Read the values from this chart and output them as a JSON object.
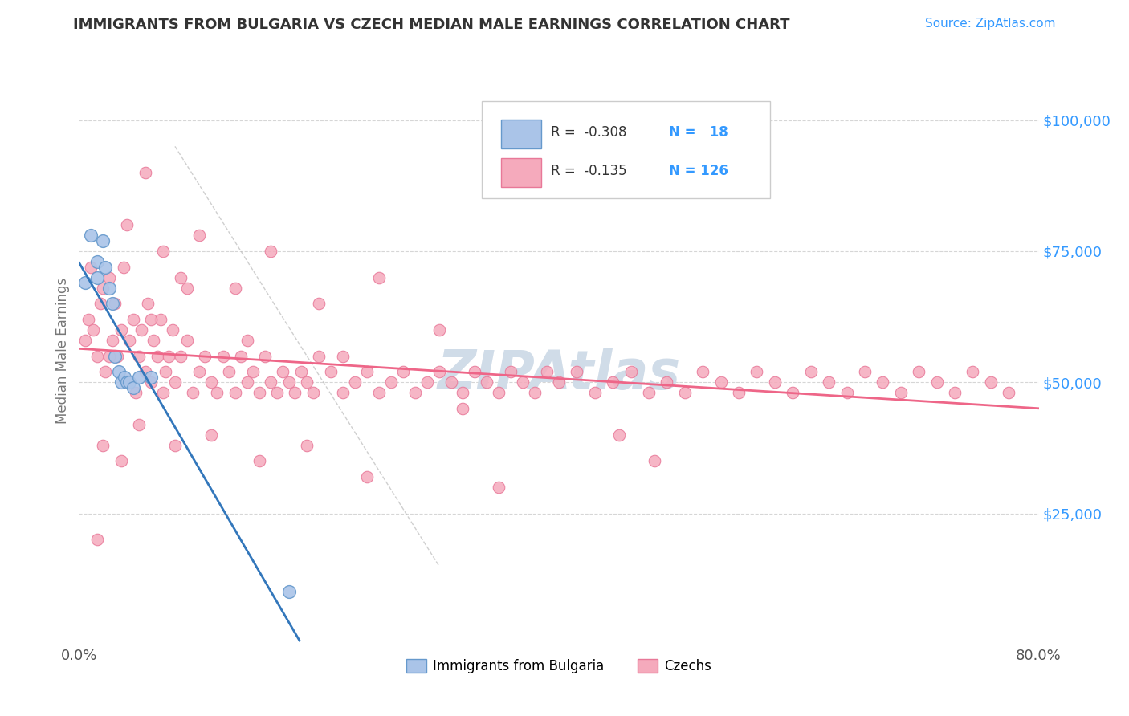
{
  "title": "IMMIGRANTS FROM BULGARIA VS CZECH MEDIAN MALE EARNINGS CORRELATION CHART",
  "source_text": "Source: ZipAtlas.com",
  "ylabel": "Median Male Earnings",
  "xlim": [
    0.0,
    0.8
  ],
  "ylim": [
    0,
    112000
  ],
  "r1": -0.308,
  "n1": 18,
  "r2": -0.135,
  "n2": 126,
  "color_bulgaria": "#aac4e8",
  "color_bulgaria_edge": "#6699cc",
  "color_czech": "#f5aabc",
  "color_czech_edge": "#e87898",
  "color_trendline_bulgaria": "#3377bb",
  "color_trendline_czech": "#ee6688",
  "color_axis_labels": "#3399ff",
  "color_title": "#333333",
  "watermark_text": "ZIPAtlas",
  "watermark_color": "#d0dce8",
  "background_color": "#ffffff",
  "grid_color": "#cccccc",
  "bulgaria_x": [
    0.005,
    0.01,
    0.015,
    0.015,
    0.02,
    0.022,
    0.025,
    0.028,
    0.03,
    0.033,
    0.035,
    0.038,
    0.04,
    0.042,
    0.045,
    0.05,
    0.06,
    0.175
  ],
  "bulgaria_y": [
    69000,
    78000,
    73000,
    70000,
    77000,
    72000,
    68000,
    65000,
    55000,
    52000,
    50000,
    51000,
    50000,
    50000,
    49000,
    51000,
    51000,
    10000
  ],
  "czech_x": [
    0.005,
    0.008,
    0.01,
    0.012,
    0.015,
    0.018,
    0.02,
    0.022,
    0.025,
    0.028,
    0.03,
    0.032,
    0.035,
    0.037,
    0.04,
    0.042,
    0.045,
    0.047,
    0.05,
    0.052,
    0.055,
    0.057,
    0.06,
    0.062,
    0.065,
    0.068,
    0.07,
    0.072,
    0.075,
    0.078,
    0.08,
    0.085,
    0.09,
    0.095,
    0.1,
    0.105,
    0.11,
    0.115,
    0.12,
    0.125,
    0.13,
    0.135,
    0.14,
    0.145,
    0.15,
    0.155,
    0.16,
    0.165,
    0.17,
    0.175,
    0.18,
    0.185,
    0.19,
    0.195,
    0.2,
    0.21,
    0.22,
    0.23,
    0.24,
    0.25,
    0.26,
    0.27,
    0.28,
    0.29,
    0.3,
    0.31,
    0.32,
    0.33,
    0.34,
    0.35,
    0.36,
    0.37,
    0.38,
    0.39,
    0.4,
    0.415,
    0.43,
    0.445,
    0.46,
    0.475,
    0.49,
    0.505,
    0.52,
    0.535,
    0.55,
    0.565,
    0.58,
    0.595,
    0.61,
    0.625,
    0.64,
    0.655,
    0.67,
    0.685,
    0.7,
    0.715,
    0.73,
    0.745,
    0.76,
    0.775,
    0.04,
    0.055,
    0.07,
    0.085,
    0.1,
    0.13,
    0.16,
    0.2,
    0.25,
    0.3,
    0.02,
    0.035,
    0.05,
    0.08,
    0.11,
    0.15,
    0.19,
    0.24,
    0.35,
    0.45,
    0.015,
    0.025,
    0.06,
    0.09,
    0.14,
    0.22,
    0.32,
    0.48
  ],
  "czech_y": [
    58000,
    62000,
    72000,
    60000,
    55000,
    65000,
    68000,
    52000,
    70000,
    58000,
    65000,
    55000,
    60000,
    72000,
    50000,
    58000,
    62000,
    48000,
    55000,
    60000,
    52000,
    65000,
    50000,
    58000,
    55000,
    62000,
    48000,
    52000,
    55000,
    60000,
    50000,
    55000,
    58000,
    48000,
    52000,
    55000,
    50000,
    48000,
    55000,
    52000,
    48000,
    55000,
    50000,
    52000,
    48000,
    55000,
    50000,
    48000,
    52000,
    50000,
    48000,
    52000,
    50000,
    48000,
    55000,
    52000,
    48000,
    50000,
    52000,
    48000,
    50000,
    52000,
    48000,
    50000,
    52000,
    50000,
    48000,
    52000,
    50000,
    48000,
    52000,
    50000,
    48000,
    52000,
    50000,
    52000,
    48000,
    50000,
    52000,
    48000,
    50000,
    48000,
    52000,
    50000,
    48000,
    52000,
    50000,
    48000,
    52000,
    50000,
    48000,
    52000,
    50000,
    48000,
    52000,
    50000,
    48000,
    52000,
    50000,
    48000,
    80000,
    90000,
    75000,
    70000,
    78000,
    68000,
    75000,
    65000,
    70000,
    60000,
    38000,
    35000,
    42000,
    38000,
    40000,
    35000,
    38000,
    32000,
    30000,
    40000,
    20000,
    55000,
    62000,
    68000,
    58000,
    55000,
    45000,
    35000
  ]
}
